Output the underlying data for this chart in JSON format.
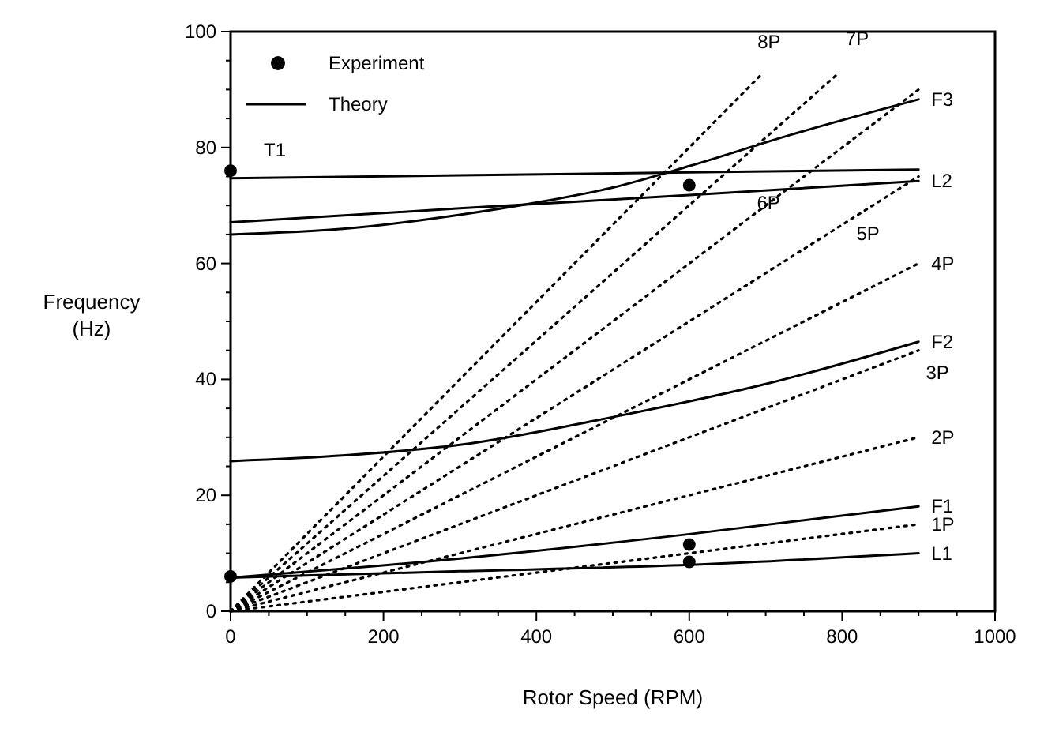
{
  "chart_data": {
    "type": "line",
    "xlabel": "Rotor Speed (RPM)",
    "ylabel": "Frequency\n(Hz)",
    "xlim": [
      0,
      1000
    ],
    "ylim": [
      0,
      100
    ],
    "xticks": [
      0,
      200,
      400,
      600,
      800,
      1000
    ],
    "yticks": [
      0,
      20,
      40,
      60,
      80,
      100
    ],
    "grid": false,
    "legend": "top left",
    "series": [
      {
        "name": "Experiment",
        "type": "scatter",
        "marker": "circle",
        "color": "#000000",
        "x": [
          0,
          0,
          600,
          600,
          600
        ],
        "values": [
          76,
          6,
          73.5,
          11.5,
          8.5
        ]
      },
      {
        "name": "T1",
        "color": "#000000",
        "line_style": "solid",
        "x": [
          0,
          300,
          600,
          900
        ],
        "values": [
          74.7,
          75.2,
          75.7,
          76.2
        ]
      },
      {
        "name": "L2",
        "color": "#000000",
        "line_style": "solid",
        "x": [
          0,
          300,
          600,
          900
        ],
        "values": [
          67.1,
          69.5,
          71.8,
          74.2
        ]
      },
      {
        "name": "F3",
        "color": "#000000",
        "line_style": "solid",
        "x": [
          0,
          150,
          300,
          400,
          500,
          600,
          733,
          900
        ],
        "values": [
          65,
          66,
          68.4,
          70.5,
          73.1,
          76.8,
          82.2,
          88.3
        ]
      },
      {
        "name": "F2",
        "color": "#000000",
        "line_style": "solid",
        "x": [
          0,
          150,
          300,
          500,
          700,
          900
        ],
        "values": [
          25.9,
          26.9,
          28.7,
          33.5,
          39.2,
          46.5
        ]
      },
      {
        "name": "F1",
        "color": "#000000",
        "line_style": "solid",
        "x": [
          0,
          300,
          600,
          900
        ],
        "values": [
          5.8,
          9.1,
          13.3,
          18.1
        ]
      },
      {
        "name": "L1",
        "color": "#000000",
        "line_style": "solid",
        "x": [
          0,
          300,
          600,
          900
        ],
        "values": [
          5.8,
          6.9,
          8.0,
          10.0
        ]
      },
      {
        "name": "1P",
        "color": "#000000",
        "line_style": "dotted",
        "x": [
          0,
          900
        ],
        "values": [
          0,
          15
        ]
      },
      {
        "name": "2P",
        "color": "#000000",
        "line_style": "dotted",
        "x": [
          0,
          900
        ],
        "values": [
          0,
          30
        ]
      },
      {
        "name": "3P",
        "color": "#000000",
        "line_style": "dotted",
        "x": [
          0,
          900
        ],
        "values": [
          0,
          45
        ]
      },
      {
        "name": "4P",
        "color": "#000000",
        "line_style": "dotted",
        "x": [
          0,
          900
        ],
        "values": [
          0,
          60
        ]
      },
      {
        "name": "5P",
        "color": "#000000",
        "line_style": "dotted",
        "x": [
          0,
          900
        ],
        "values": [
          0,
          75
        ]
      },
      {
        "name": "6P",
        "color": "#000000",
        "line_style": "dotted",
        "x": [
          0,
          900
        ],
        "values": [
          0,
          90
        ]
      },
      {
        "name": "7P",
        "color": "#000000",
        "line_style": "dotted",
        "x": [
          0,
          795
        ],
        "values": [
          0,
          92.8
        ]
      },
      {
        "name": "8P",
        "color": "#000000",
        "line_style": "dotted",
        "x": [
          0,
          692
        ],
        "values": [
          0,
          92.3
        ]
      }
    ],
    "annotations": [
      "Theory"
    ]
  }
}
